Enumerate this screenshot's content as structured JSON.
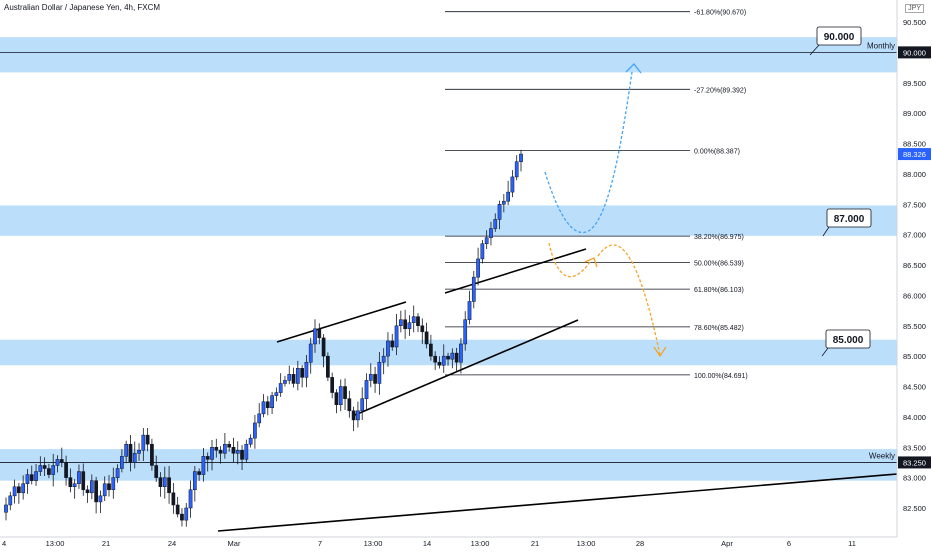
{
  "title": "Australian Dollar / Japanese Yen, 4h, FXCM",
  "currency": "JPY",
  "colors": {
    "up": "#26a69a",
    "up_body": "#2962ff",
    "down": "#131722",
    "zone": "#bbdefb",
    "blue_arrow": "#42a5f5",
    "orange_arrow": "#f7a325",
    "grid_text": "#131722"
  },
  "chart_data": {
    "type": "candlestick",
    "title": "Australian Dollar / Japanese Yen, 4h, FXCM",
    "y_axis": {
      "ylim": [
        82.15,
        90.72
      ],
      "ticks": [
        "90.500",
        "90.000",
        "89.500",
        "89.000",
        "88.500",
        "88.000",
        "87.500",
        "87.000",
        "86.500",
        "86.000",
        "85.500",
        "85.000",
        "84.500",
        "84.000",
        "83.500",
        "83.000",
        "82.500"
      ],
      "tick_values": [
        90.5,
        90.0,
        89.5,
        89.0,
        88.5,
        88.0,
        87.5,
        87.0,
        86.5,
        86.0,
        85.5,
        85.0,
        84.5,
        84.0,
        83.5,
        83.0,
        82.5
      ]
    },
    "x_axis": {
      "ticks": [
        "4",
        "13:00",
        "21",
        "24",
        "Mar",
        "7",
        "13:00",
        "14",
        "13:00",
        "21",
        "13:00",
        "28",
        "Apr",
        "6",
        "11"
      ]
    },
    "price_labels": [
      {
        "text": "90.000",
        "value": 90.0,
        "style": "dark"
      },
      {
        "text": "88.326",
        "value": 88.326,
        "style": "blue"
      },
      {
        "text": "83.250",
        "value": 83.25,
        "style": "dark"
      }
    ],
    "zones": [
      {
        "low": 89.67,
        "high": 90.25
      },
      {
        "low": 86.98,
        "high": 87.48
      },
      {
        "low": 84.85,
        "high": 85.27
      },
      {
        "low": 82.95,
        "high": 83.47
      }
    ],
    "horizontal_lines": [
      {
        "value": 90.0,
        "label": "Monthly"
      },
      {
        "value": 83.25,
        "label": "Weekly"
      }
    ],
    "fibonacci": [
      {
        "label": "-61.80%(90.670)",
        "value": 90.67
      },
      {
        "label": "-27.20%(89.392)",
        "value": 89.392
      },
      {
        "label": "0.00%(88.387)",
        "value": 88.387
      },
      {
        "label": "38.20%(86.975)",
        "value": 86.975
      },
      {
        "label": "50.00%(86.539)",
        "value": 86.539
      },
      {
        "label": "61.80%(86.103)",
        "value": 86.103
      },
      {
        "label": "78.60%(85.482)",
        "value": 85.482
      },
      {
        "label": "100.00%(84.691)",
        "value": 84.691
      }
    ],
    "callouts": [
      {
        "text": "90.000",
        "value": 90.0
      },
      {
        "text": "87.000",
        "value": 87.0
      },
      {
        "text": "85.000",
        "value": 85.0
      }
    ],
    "closes": [
      82.55,
      82.7,
      82.85,
      82.75,
      82.9,
      83.05,
      82.95,
      83.1,
      83.2,
      83.15,
      83.05,
      83.2,
      83.3,
      83.25,
      83.0,
      82.85,
      82.9,
      83.1,
      82.8,
      82.75,
      82.95,
      82.6,
      82.7,
      82.9,
      82.8,
      83.0,
      83.15,
      83.35,
      83.55,
      83.25,
      83.4,
      83.45,
      83.7,
      83.55,
      83.2,
      83.0,
      82.85,
      83.0,
      82.75,
      82.55,
      82.4,
      82.3,
      82.5,
      82.8,
      83.1,
      83.05,
      83.35,
      83.3,
      83.5,
      83.45,
      83.4,
      83.55,
      83.5,
      83.4,
      83.45,
      83.3,
      83.55,
      83.65,
      83.9,
      84.05,
      84.25,
      84.15,
      84.35,
      84.4,
      84.55,
      84.6,
      84.7,
      84.55,
      84.8,
      84.65,
      84.9,
      85.2,
      85.45,
      85.3,
      85.0,
      84.65,
      84.4,
      84.2,
      84.5,
      84.3,
      84.1,
      83.95,
      84.1,
      84.3,
      84.6,
      84.7,
      84.55,
      84.9,
      85.0,
      85.25,
      85.15,
      85.5,
      85.6,
      85.45,
      85.55,
      85.65,
      85.5,
      85.4,
      85.2,
      85.0,
      84.9,
      84.85,
      85.0,
      84.95,
      85.05,
      84.9,
      85.2,
      85.6,
      85.9,
      86.3,
      86.6,
      86.85,
      86.95,
      87.1,
      87.25,
      87.5,
      87.55,
      87.7,
      87.95,
      88.2,
      88.326
    ]
  }
}
